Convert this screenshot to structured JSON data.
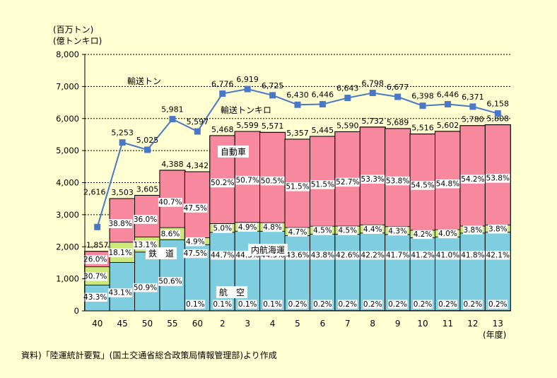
{
  "chart_data": {
    "type": "bar",
    "stacked": true,
    "categories": [
      "40",
      "45",
      "50",
      "55",
      "60",
      "2",
      "3",
      "4",
      "5",
      "6",
      "7",
      "8",
      "9",
      "10",
      "11",
      "12",
      "13"
    ],
    "ylim": [
      0,
      8000
    ],
    "yticks": [
      0,
      1000,
      2000,
      3000,
      4000,
      5000,
      6000,
      7000,
      8000
    ],
    "ytick_labels": [
      "0",
      "1,000",
      "2,000",
      "3,000",
      "4,000",
      "5,000",
      "6,000",
      "7,000",
      "8,000"
    ],
    "yunit_top": "(百万トン)",
    "yunit_bottom": "(億トンキロ)",
    "xunit": "(年度)",
    "source_note": "資料)「陸運統計要覧」(国土交通省総合政策局情報管理部)より作成",
    "bar_totals": [
      1857,
      3503,
      3605,
      4388,
      4342,
      5468,
      5599,
      5571,
      5357,
      5445,
      5590,
      5732,
      5689,
      5516,
      5602,
      5780,
      5808
    ],
    "bar_total_labels": [
      "1,857",
      "3,503",
      "3,605",
      "4,388",
      "4,342",
      "5,468",
      "5,599",
      "5,571",
      "5,357",
      "5,445",
      "5,590",
      "5,732",
      "5,689",
      "5,516",
      "5,602",
      "5,780",
      "5,808"
    ],
    "segment_order": [
      "air",
      "coastal",
      "rail",
      "truck"
    ],
    "segments": {
      "air": {
        "values": [
          0,
          0,
          0,
          0,
          0.1,
          0.1,
          0.1,
          0.1,
          0.2,
          0.2,
          0.2,
          0.2,
          0.2,
          0.2,
          0.2,
          0.2,
          0.2
        ],
        "labels": [
          "",
          "",
          "",
          "",
          "0.1%",
          "0.1%",
          "0.1%",
          "0.1%",
          "0.2%",
          "0.2%",
          "0.2%",
          "0.2%",
          "0.2%",
          "0.2%",
          "0.2%",
          "0.2%",
          "0.2%"
        ]
      },
      "coastal": {
        "values": [
          43.3,
          43.1,
          50.9,
          50.6,
          47.5,
          44.7,
          44.3,
          44.5,
          43.6,
          43.8,
          42.6,
          42.2,
          41.7,
          41.2,
          41.0,
          41.8,
          42.1
        ],
        "labels": [
          "43.3%",
          "43.1%",
          "50.9%",
          "50.6%",
          "47.5%",
          "44.7%",
          "44.3%",
          "44.5%",
          "43.6%",
          "43.8%",
          "42.6%",
          "42.2%",
          "41.7%",
          "41.2%",
          "41.0%",
          "41.8%",
          "42.1%"
        ]
      },
      "rail": {
        "values": [
          30.7,
          18.1,
          13.1,
          8.6,
          4.9,
          5.0,
          4.9,
          4.8,
          4.7,
          4.5,
          4.5,
          4.4,
          4.3,
          4.2,
          4.0,
          3.8,
          3.8
        ],
        "labels": [
          "30.7%",
          "18.1%",
          "13.1%",
          "8.6%",
          "4.9%",
          "5.0%",
          "4.9%",
          "4.8%",
          "4.7%",
          "4.5%",
          "4.5%",
          "4.4%",
          "4.3%",
          "4.2%",
          "4.0%",
          "3.8%",
          "3.8%"
        ]
      },
      "truck": {
        "values": [
          26.0,
          38.8,
          36.0,
          40.7,
          47.5,
          50.2,
          50.7,
          50.5,
          51.5,
          51.5,
          52.7,
          53.3,
          53.8,
          54.5,
          54.8,
          54.2,
          53.8
        ],
        "labels": [
          "26.0%",
          "38.8%",
          "36.0%",
          "40.7%",
          "47.5%",
          "50.2%",
          "50.7%",
          "50.5%",
          "51.5%",
          "51.5%",
          "52.7%",
          "53.3%",
          "53.8%",
          "54.5%",
          "54.8%",
          "54.2%",
          "53.8%"
        ]
      }
    },
    "line": {
      "values": [
        2616,
        5253,
        5025,
        5981,
        5597,
        6776,
        6919,
        6725,
        6430,
        6446,
        6643,
        6798,
        6677,
        6398,
        6446,
        6371,
        6158
      ],
      "labels": [
        "2,616",
        "5,253",
        "5,025",
        "5,981",
        "5,597",
        "6,776",
        "6,919",
        "6,725",
        "6,430",
        "6,446",
        "6,643",
        "6,798",
        "6,677",
        "6,398",
        "6,446",
        "6,371",
        "6,158"
      ]
    },
    "annotations": {
      "ton_line": "輸送トン",
      "tonkm_bars": "輸送トンキロ",
      "truck": "自動車",
      "rail": "鉄　道",
      "coastal": "内航海運",
      "air": "航　空"
    },
    "colors": {
      "truck": "#F7889E",
      "rail": "#CCE87A",
      "coastal": "#7ECEE0",
      "air": "#7ECEE0",
      "line": "#4A78C8",
      "background": "#FFFFD2",
      "label_bg": "#FFFFFF"
    }
  }
}
